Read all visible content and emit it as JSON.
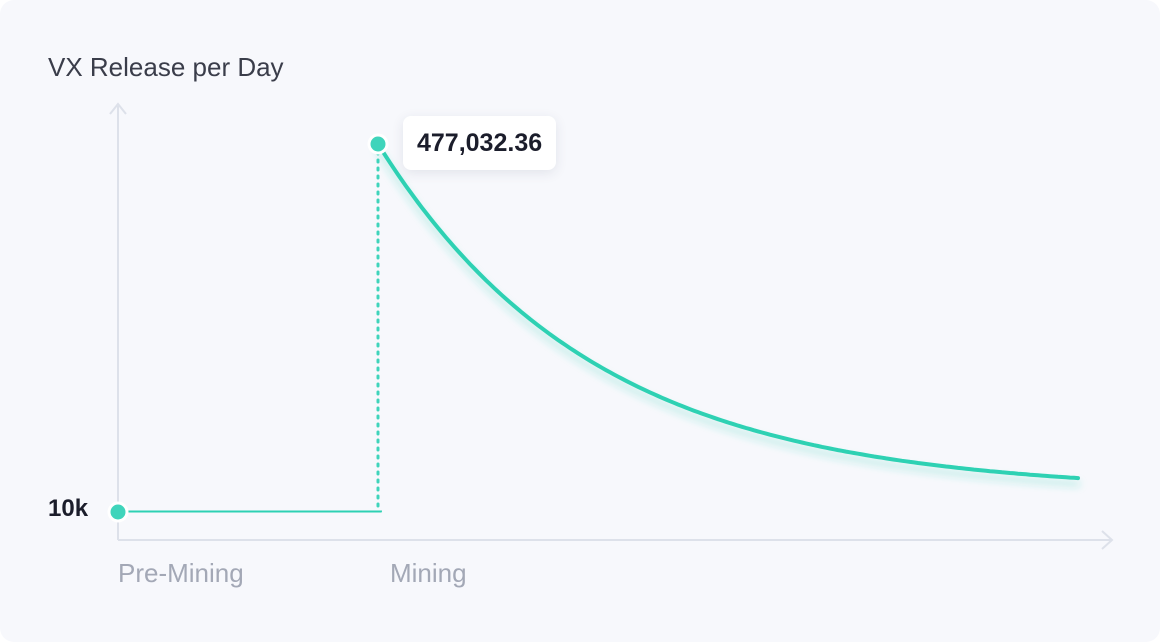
{
  "chart_data": {
    "type": "line",
    "ylabel": "VX Release per Day",
    "y_tick_labels": [
      "10k"
    ],
    "x_tick_labels": [
      "Pre-Mining",
      "Mining"
    ],
    "annotation": "477,032.36",
    "series": [
      {
        "points": [
          {
            "x": "Pre-Mining",
            "y": 10000
          },
          {
            "x": "Mining",
            "y": 10000
          },
          {
            "x": "Mining",
            "y": 477032.36
          }
        ]
      }
    ],
    "peak_value": 477032.36,
    "base_value": 10000,
    "decay": "exponential",
    "grid": false,
    "colors": {
      "line": "#2fd1b3",
      "marker": "#3fd4bb",
      "axis": "#dde1ea"
    }
  }
}
